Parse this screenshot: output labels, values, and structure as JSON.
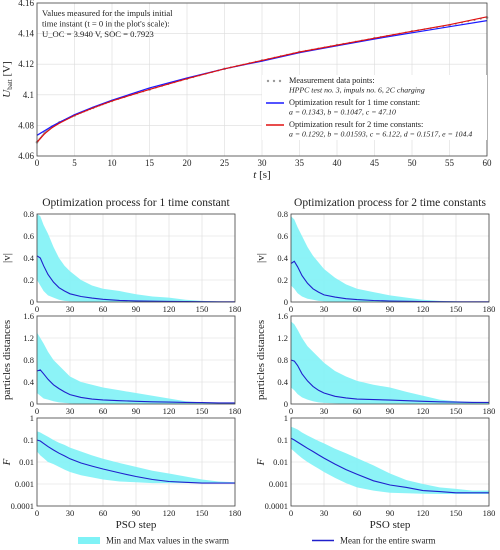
{
  "chart_data": [
    {
      "type": "line",
      "id": "top",
      "xlabel": "t [s]",
      "ylabel": "U_batt [V]",
      "xlim": [
        0,
        60
      ],
      "ylim": [
        4.06,
        4.16
      ],
      "xticks": [
        0,
        5,
        10,
        15,
        20,
        25,
        30,
        35,
        40,
        45,
        50,
        55,
        60
      ],
      "yticks": [
        4.06,
        4.08,
        4.1,
        4.12,
        4.14,
        4.16
      ],
      "grid": true,
      "annotation": [
        "Values measured for the impuls initial",
        "time instant (t = 0 in the plot's scale):",
        "U_OC = 3.940 V, SOC = 0.7923"
      ],
      "legend": [
        {
          "label": "Measurement data points:",
          "sub": "HPPC test no. 3, impuls no. 6, 2C charging",
          "style": "dots",
          "color": "#9a9a9a"
        },
        {
          "label": "Optimization result for 1 time constant:",
          "sub": "a = 0.1343, b = 0.1047, c = 47.10",
          "style": "line",
          "color": "#1a1aff"
        },
        {
          "label": "Optimization result for 2 time constants:",
          "sub": "a = 0.1292, b = 0.01593, c = 6.122, d = 0.1517, e = 104.4",
          "style": "line",
          "color": "#e01010"
        }
      ],
      "series": [
        {
          "name": "Measurement data points",
          "color": "#9a9a9a",
          "x": [
            0,
            1,
            2,
            3,
            5,
            7.5,
            10,
            15,
            20,
            25,
            30,
            35,
            40,
            45,
            50,
            55,
            60
          ],
          "y": [
            4.069,
            4.075,
            4.079,
            4.082,
            4.0865,
            4.0915,
            4.096,
            4.1035,
            4.1105,
            4.117,
            4.1225,
            4.128,
            4.1325,
            4.137,
            4.1415,
            4.1455,
            4.1505
          ]
        },
        {
          "name": "Optimization result for 1 time constant",
          "color": "#1a1aff",
          "x": [
            0,
            1,
            2,
            3,
            5,
            7.5,
            10,
            15,
            20,
            25,
            30,
            35,
            40,
            45,
            50,
            55,
            60
          ],
          "y": [
            4.0735,
            4.0765,
            4.0795,
            4.082,
            4.087,
            4.092,
            4.0965,
            4.1045,
            4.111,
            4.117,
            4.122,
            4.1275,
            4.132,
            4.1365,
            4.1405,
            4.1445,
            4.1485
          ]
        },
        {
          "name": "Optimization result for 2 time constants",
          "color": "#e01010",
          "x": [
            0,
            1,
            2,
            3,
            5,
            7.5,
            10,
            15,
            20,
            25,
            30,
            35,
            40,
            45,
            50,
            55,
            60
          ],
          "y": [
            4.069,
            4.0745,
            4.0785,
            4.0815,
            4.0865,
            4.0915,
            4.096,
            4.1035,
            4.1105,
            4.117,
            4.1225,
            4.128,
            4.1325,
            4.137,
            4.1415,
            4.1458,
            4.151
          ]
        }
      ]
    },
    {
      "type": "area",
      "id": "l1",
      "title": "Optimization process for 1 time constant",
      "ylabel": "|v|",
      "xlim": [
        0,
        180
      ],
      "ylim": [
        0,
        0.8
      ],
      "xticks": [
        0,
        30,
        60,
        90,
        120,
        150,
        180
      ],
      "yticks": [
        0,
        0.2,
        0.4,
        0.6,
        0.8
      ],
      "grid": true,
      "x": [
        0,
        3,
        6,
        10,
        15,
        20,
        25,
        30,
        40,
        50,
        60,
        75,
        90,
        105,
        120,
        135,
        150,
        165,
        180
      ],
      "mean": [
        0.42,
        0.4,
        0.33,
        0.25,
        0.18,
        0.13,
        0.1,
        0.075,
        0.05,
        0.035,
        0.025,
        0.015,
        0.01,
        0.007,
        0.005,
        0.004,
        0.003,
        0.002,
        0.002
      ],
      "min": [
        0.2,
        0.15,
        0.1,
        0.06,
        0.04,
        0.02,
        0.01,
        0.005,
        0.002,
        0,
        0,
        0,
        0,
        0,
        0,
        0,
        0,
        0,
        0
      ],
      "max": [
        0.8,
        0.78,
        0.7,
        0.62,
        0.5,
        0.4,
        0.33,
        0.28,
        0.2,
        0.15,
        0.12,
        0.1,
        0.07,
        0.05,
        0.04,
        0.02,
        0.01,
        0.005,
        0.003
      ]
    },
    {
      "type": "area",
      "id": "l2",
      "ylabel": "particles distances",
      "xlim": [
        0,
        180
      ],
      "ylim": [
        0,
        1.6
      ],
      "xticks": [
        0,
        30,
        60,
        90,
        120,
        150,
        180
      ],
      "yticks": [
        0,
        0.4,
        0.8,
        1.2,
        1.6
      ],
      "grid": true,
      "x": [
        0,
        3,
        6,
        10,
        15,
        20,
        25,
        30,
        40,
        50,
        60,
        75,
        90,
        105,
        120,
        135,
        150,
        165,
        180
      ],
      "mean": [
        0.6,
        0.62,
        0.55,
        0.45,
        0.35,
        0.28,
        0.22,
        0.17,
        0.12,
        0.09,
        0.075,
        0.06,
        0.05,
        0.04,
        0.035,
        0.03,
        0.025,
        0.02,
        0.02
      ],
      "min": [
        0.2,
        0.15,
        0.1,
        0.08,
        0.05,
        0.03,
        0.02,
        0.01,
        0.005,
        0,
        0,
        0,
        0,
        0,
        0,
        0,
        0,
        0,
        0
      ],
      "max": [
        1.3,
        1.2,
        1.1,
        0.95,
        0.8,
        0.7,
        0.6,
        0.5,
        0.4,
        0.35,
        0.3,
        0.25,
        0.2,
        0.15,
        0.1,
        0.05,
        0.03,
        0.02,
        0.02
      ]
    },
    {
      "type": "area",
      "id": "l3",
      "scale": "log",
      "ylabel": "F",
      "xlabel": "PSO step",
      "xlim": [
        0,
        180
      ],
      "ylim": [
        0.0001,
        1
      ],
      "xticks": [
        0,
        30,
        60,
        90,
        120,
        150,
        180
      ],
      "yticks": [
        0.0001,
        0.001,
        0.01,
        0.1,
        1
      ],
      "yticklabels": [
        "0.0001",
        "0.001",
        "0.01",
        "0.1",
        "1"
      ],
      "grid": true,
      "x": [
        0,
        3,
        6,
        10,
        15,
        20,
        25,
        30,
        40,
        50,
        60,
        75,
        90,
        105,
        120,
        135,
        150,
        165,
        180
      ],
      "mean": [
        0.1,
        0.09,
        0.07,
        0.05,
        0.035,
        0.025,
        0.019,
        0.014,
        0.009,
        0.0065,
        0.0048,
        0.0032,
        0.0022,
        0.0016,
        0.0013,
        0.0012,
        0.0011,
        0.0011,
        0.0011
      ],
      "min": [
        0.03,
        0.02,
        0.015,
        0.01,
        0.008,
        0.006,
        0.0045,
        0.0035,
        0.0025,
        0.002,
        0.0016,
        0.0013,
        0.0012,
        0.0011,
        0.0011,
        0.0011,
        0.0011,
        0.0011,
        0.0011
      ],
      "max": [
        0.25,
        0.22,
        0.18,
        0.14,
        0.1,
        0.075,
        0.06,
        0.045,
        0.03,
        0.02,
        0.014,
        0.009,
        0.006,
        0.004,
        0.003,
        0.0022,
        0.0016,
        0.0013,
        0.0012
      ]
    },
    {
      "type": "area",
      "id": "r1",
      "title": "Optimization process for 2 time constants",
      "ylabel": "|v|",
      "xlim": [
        0,
        180
      ],
      "ylim": [
        0,
        0.8
      ],
      "xticks": [
        0,
        30,
        60,
        90,
        120,
        150,
        180
      ],
      "yticks": [
        0,
        0.2,
        0.4,
        0.6,
        0.8
      ],
      "grid": true,
      "x": [
        0,
        3,
        6,
        10,
        15,
        20,
        25,
        30,
        40,
        50,
        60,
        75,
        90,
        105,
        120,
        135,
        150,
        165,
        180
      ],
      "mean": [
        0.35,
        0.37,
        0.32,
        0.24,
        0.17,
        0.12,
        0.09,
        0.065,
        0.045,
        0.03,
        0.022,
        0.014,
        0.009,
        0.006,
        0.004,
        0.003,
        0.002,
        0.002,
        0.002
      ],
      "min": [
        0.15,
        0.12,
        0.08,
        0.05,
        0.03,
        0.02,
        0.01,
        0.005,
        0.002,
        0,
        0,
        0,
        0,
        0,
        0,
        0,
        0,
        0,
        0
      ],
      "max": [
        0.78,
        0.75,
        0.68,
        0.6,
        0.5,
        0.42,
        0.36,
        0.3,
        0.22,
        0.16,
        0.12,
        0.09,
        0.06,
        0.04,
        0.02,
        0.01,
        0.005,
        0.003,
        0.002
      ]
    },
    {
      "type": "area",
      "id": "r2",
      "ylabel": "particles distances",
      "xlim": [
        0,
        180
      ],
      "ylim": [
        0,
        1.6
      ],
      "xticks": [
        0,
        30,
        60,
        90,
        120,
        150,
        180
      ],
      "yticks": [
        0,
        0.4,
        0.8,
        1.2,
        1.6
      ],
      "grid": true,
      "x": [
        0,
        3,
        6,
        10,
        15,
        20,
        25,
        30,
        40,
        50,
        60,
        75,
        90,
        105,
        120,
        135,
        150,
        165,
        180
      ],
      "mean": [
        0.8,
        0.78,
        0.7,
        0.55,
        0.42,
        0.32,
        0.25,
        0.2,
        0.14,
        0.11,
        0.09,
        0.08,
        0.07,
        0.06,
        0.05,
        0.04,
        0.035,
        0.03,
        0.03
      ],
      "min": [
        0.3,
        0.25,
        0.18,
        0.12,
        0.08,
        0.05,
        0.03,
        0.02,
        0.01,
        0.005,
        0,
        0,
        0,
        0,
        0,
        0,
        0,
        0,
        0
      ],
      "max": [
        1.5,
        1.45,
        1.35,
        1.2,
        1.05,
        0.95,
        0.85,
        0.75,
        0.6,
        0.5,
        0.42,
        0.35,
        0.3,
        0.22,
        0.15,
        0.08,
        0.05,
        0.04,
        0.035
      ]
    },
    {
      "type": "area",
      "id": "r3",
      "scale": "log",
      "ylabel": "F",
      "xlabel": "PSO step",
      "xlim": [
        0,
        180
      ],
      "ylim": [
        0.0001,
        1
      ],
      "xticks": [
        0,
        30,
        60,
        90,
        120,
        150,
        180
      ],
      "yticks": [
        0.0001,
        0.001,
        0.01,
        0.1,
        1
      ],
      "yticklabels": [
        "0.0001",
        "0.001",
        "0.01",
        "0.1",
        "1"
      ],
      "grid": true,
      "x": [
        0,
        3,
        6,
        10,
        15,
        20,
        25,
        30,
        40,
        50,
        60,
        75,
        90,
        105,
        120,
        135,
        150,
        165,
        180
      ],
      "mean": [
        0.12,
        0.1,
        0.08,
        0.06,
        0.042,
        0.03,
        0.021,
        0.015,
        0.008,
        0.0045,
        0.0028,
        0.0014,
        0.0009,
        0.0007,
        0.0005,
        0.00045,
        0.0004,
        0.0004,
        0.0004
      ],
      "min": [
        0.04,
        0.03,
        0.022,
        0.015,
        0.01,
        0.007,
        0.005,
        0.0035,
        0.0019,
        0.0011,
        0.0007,
        0.0005,
        0.0004,
        0.00038,
        0.00036,
        0.00035,
        0.00035,
        0.00035,
        0.00035
      ],
      "max": [
        0.4,
        0.35,
        0.3,
        0.22,
        0.16,
        0.12,
        0.09,
        0.07,
        0.04,
        0.025,
        0.015,
        0.007,
        0.003,
        0.0015,
        0.001,
        0.0007,
        0.0006,
        0.0005,
        0.0005
      ]
    }
  ],
  "bottom_legend": {
    "band_label": "Min and Max values in the swarm",
    "mean_label": "Mean for the entire swarm",
    "band_color": "#7ff2f6",
    "mean_color": "#2020cc"
  }
}
